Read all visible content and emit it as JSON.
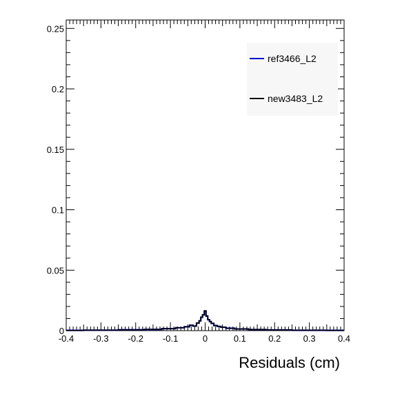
{
  "chart_data": {
    "type": "line",
    "title": "",
    "xlabel": "Residuals (cm)",
    "ylabel": "",
    "xlim": [
      -0.4,
      0.4
    ],
    "ylim": [
      0,
      0.257
    ],
    "x_ticks": [
      -0.4,
      -0.3,
      -0.2,
      -0.1,
      0,
      0.1,
      0.2,
      0.3,
      0.4
    ],
    "x_tick_labels": [
      "-0.4",
      "-0.3",
      "-0.2",
      "-0.1",
      "0",
      "0.1",
      "0.2",
      "0.3",
      "0.4"
    ],
    "y_ticks": [
      0,
      0.05,
      0.1,
      0.15,
      0.2,
      0.25
    ],
    "y_tick_labels": [
      "0",
      "0.05",
      "0.1",
      "0.15",
      "0.2",
      "0.25"
    ],
    "grid": false,
    "legend_position": "top-right",
    "series": [
      {
        "name": "ref3466_L2",
        "color": "#0000cc",
        "x": [
          -0.4,
          -0.3,
          -0.2,
          -0.15,
          -0.1,
          -0.07,
          -0.05,
          -0.04,
          -0.03,
          -0.02,
          -0.015,
          -0.01,
          -0.005,
          0,
          0.005,
          0.01,
          0.015,
          0.02,
          0.03,
          0.04,
          0.05,
          0.07,
          0.1,
          0.15,
          0.2,
          0.3,
          0.4
        ],
        "y": [
          0.0002,
          0.0004,
          0.0007,
          0.001,
          0.0016,
          0.0024,
          0.0032,
          0.0044,
          0.0038,
          0.0062,
          0.008,
          0.011,
          0.013,
          0.016,
          0.012,
          0.009,
          0.0075,
          0.006,
          0.0042,
          0.0035,
          0.0028,
          0.002,
          0.0014,
          0.0009,
          0.0006,
          0.0003,
          0.0002
        ]
      },
      {
        "name": "new3483_L2",
        "color": "#000000",
        "x": [
          -0.4,
          -0.3,
          -0.2,
          -0.15,
          -0.1,
          -0.07,
          -0.05,
          -0.04,
          -0.03,
          -0.02,
          -0.015,
          -0.01,
          -0.005,
          0,
          0.005,
          0.01,
          0.015,
          0.02,
          0.03,
          0.04,
          0.05,
          0.07,
          0.1,
          0.15,
          0.2,
          0.3,
          0.4
        ],
        "y": [
          0.0002,
          0.0004,
          0.0007,
          0.001,
          0.0016,
          0.0024,
          0.0032,
          0.0045,
          0.0037,
          0.0063,
          0.0082,
          0.0112,
          0.0132,
          0.0165,
          0.0122,
          0.0092,
          0.0076,
          0.0061,
          0.0043,
          0.0035,
          0.0028,
          0.002,
          0.0014,
          0.0009,
          0.0006,
          0.0003,
          0.0002
        ]
      }
    ]
  }
}
